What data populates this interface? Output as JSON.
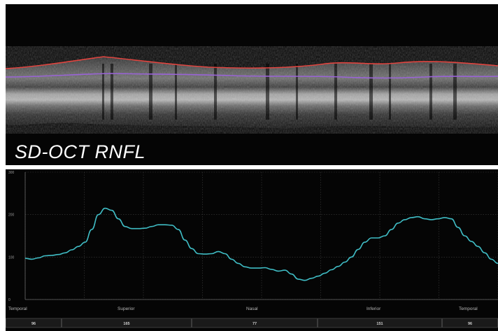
{
  "oct": {
    "caption": "SD-OCT RNFL",
    "colors": {
      "ilm_boundary": "#e0443f",
      "rnfl_boundary": "#9a63d8"
    }
  },
  "chart_data": {
    "type": "line",
    "title": "",
    "xlabel": "",
    "ylabel": "",
    "ylim": [
      0,
      300
    ],
    "y_ticks": [
      0,
      100,
      200,
      300
    ],
    "grid": true,
    "line_color": "#3fbcc4",
    "x_sector_labels": [
      "Temporal",
      "Superior",
      "Nasal",
      "Inferior",
      "Temporal"
    ],
    "x": [
      0,
      1,
      2,
      3,
      4,
      5,
      6,
      7,
      8,
      9,
      10,
      11,
      12,
      13,
      14,
      15,
      16,
      17,
      18,
      19,
      20,
      21,
      22,
      23,
      24,
      25,
      26,
      27,
      28,
      29,
      30,
      31,
      32,
      33,
      34,
      35,
      36,
      37,
      38,
      39,
      40,
      41,
      42,
      43,
      44,
      45,
      46,
      47,
      48,
      49,
      50,
      51,
      52,
      53,
      54,
      55,
      56,
      57,
      58,
      59,
      60,
      61,
      62,
      63,
      64,
      65,
      66,
      67,
      68,
      69,
      70,
      71
    ],
    "values": [
      97,
      95,
      98,
      103,
      104,
      106,
      110,
      117,
      125,
      135,
      165,
      200,
      215,
      210,
      190,
      172,
      167,
      167,
      168,
      172,
      176,
      176,
      175,
      165,
      140,
      120,
      108,
      107,
      108,
      113,
      108,
      95,
      85,
      77,
      74,
      74,
      75,
      71,
      67,
      69,
      60,
      48,
      45,
      50,
      55,
      62,
      70,
      78,
      88,
      100,
      118,
      135,
      145,
      145,
      150,
      165,
      180,
      188,
      193,
      195,
      190,
      188,
      190,
      193,
      190,
      170,
      150,
      137,
      125,
      110,
      95,
      85
    ],
    "sector_averages": [
      "96",
      "165",
      "77",
      "151",
      "96"
    ]
  }
}
